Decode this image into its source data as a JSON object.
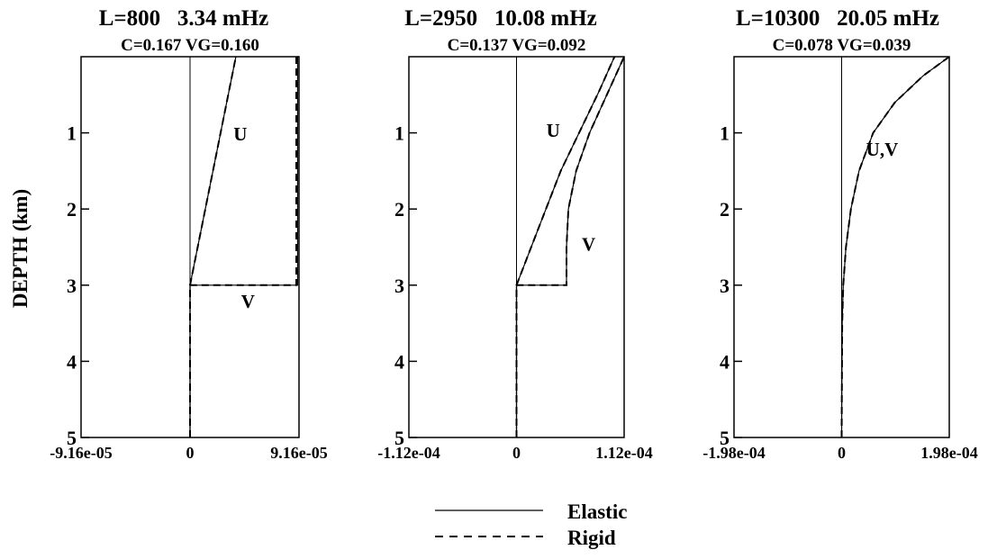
{
  "chart_data": [
    {
      "type": "line",
      "title": "L=800   3.34 mHz",
      "subtitle": "C=0.167 VG=0.160",
      "ylabel": "DEPTH (km)",
      "xlim": [
        -9.16e-05,
        9.16e-05
      ],
      "ylim": [
        0,
        5
      ],
      "y_inverted": true,
      "xticks": [
        "-9.16e-05",
        "0",
        "9.16e-05"
      ],
      "yticks": [
        "1",
        "2",
        "3",
        "4",
        "5"
      ],
      "zero_line": true,
      "series": [
        {
          "name": "U",
          "style": "Elastic",
          "x": [
            0,
            0,
            3.85e-05
          ],
          "y": [
            5,
            3,
            0
          ]
        },
        {
          "name": "U",
          "style": "Rigid",
          "x": [
            0,
            0,
            3.85e-05
          ],
          "y": [
            5,
            3,
            0
          ]
        },
        {
          "name": "V",
          "style": "Elastic",
          "x": [
            0,
            0,
            9.05e-05,
            9.05e-05,
            9.15e-05
          ],
          "y": [
            5,
            3,
            3,
            0,
            0
          ]
        },
        {
          "name": "V",
          "style": "Rigid",
          "x": [
            0,
            0,
            8.4e-05,
            8.93e-05,
            8.93e-05,
            9.15e-05
          ],
          "y": [
            5,
            3,
            3,
            3,
            0,
            0
          ]
        }
      ],
      "annotations": [
        {
          "text": "U",
          "x": 3.65e-05,
          "y": 1.1
        },
        {
          "text": "V",
          "x": 4.3e-05,
          "y": 3.3
        }
      ]
    },
    {
      "type": "line",
      "title": "L=2950   10.08 mHz",
      "subtitle": "C=0.137 VG=0.092",
      "xlim": [
        -0.000112,
        0.000112
      ],
      "ylim": [
        0,
        5
      ],
      "y_inverted": true,
      "xticks": [
        "-1.12e-04",
        "0",
        "1.12e-04"
      ],
      "yticks": [
        "1",
        "2",
        "3",
        "4",
        "5"
      ],
      "zero_line": true,
      "series": [
        {
          "name": "U",
          "style": "Elastic",
          "x": [
            0,
            0,
            2.3e-05,
            4.6e-05,
            6.7e-05,
            8.6e-05,
            0.000102
          ],
          "y": [
            5,
            3,
            2.25,
            1.5,
            0.95,
            0.45,
            0
          ]
        },
        {
          "name": "U",
          "style": "Rigid",
          "x": [
            0,
            0,
            2.3e-05,
            4.6e-05,
            6.7e-05,
            8.6e-05,
            0.000102
          ],
          "y": [
            5,
            3,
            2.25,
            1.5,
            0.95,
            0.45,
            0
          ]
        },
        {
          "name": "V",
          "style": "Elastic",
          "x": [
            0,
            0,
            5.2e-05,
            5.2e-05,
            5.4e-05,
            6.2e-05,
            7.6e-05,
            9.4e-05,
            0.000112
          ],
          "y": [
            5,
            3,
            3,
            2.5,
            2.0,
            1.5,
            1.0,
            0.5,
            0
          ]
        },
        {
          "name": "V",
          "style": "Rigid",
          "x": [
            0,
            0,
            5.2e-05,
            5.2e-05,
            5.4e-05,
            6.2e-05,
            7.6e-05,
            9.4e-05,
            0.000112
          ],
          "y": [
            5,
            3,
            3,
            2.5,
            2.0,
            1.5,
            1.0,
            0.5,
            0
          ]
        }
      ],
      "annotations": [
        {
          "text": "U",
          "x": 3.1e-05,
          "y": 1.05
        },
        {
          "text": "V",
          "x": 6.8e-05,
          "y": 2.55
        }
      ]
    },
    {
      "type": "line",
      "title": "L=10300   20.05 mHz",
      "subtitle": "C=0.078 VG=0.039",
      "xlim": [
        -0.000198,
        0.000198
      ],
      "ylim": [
        0,
        5
      ],
      "y_inverted": true,
      "xticks": [
        "-1.98e-04",
        "0",
        "1.98e-04"
      ],
      "yticks": [
        "1",
        "2",
        "3",
        "4",
        "5"
      ],
      "zero_line": true,
      "series": [
        {
          "name": "U,V",
          "style": "Elastic",
          "x": [
            0,
            1e-06,
            3e-06,
            8e-06,
            1.7e-05,
            3.2e-05,
            5.8e-05,
            9.8e-05,
            0.00015,
            0.000198
          ],
          "y": [
            5,
            3.5,
            3,
            2.5,
            2,
            1.5,
            1,
            0.6,
            0.25,
            0
          ]
        },
        {
          "name": "U,V",
          "style": "Rigid",
          "x": [
            0,
            1e-06,
            3e-06,
            8e-06,
            1.7e-05,
            3.2e-05,
            5.8e-05,
            9.8e-05,
            0.00015,
            0.000198
          ],
          "y": [
            5,
            3.5,
            3,
            2.5,
            2,
            1.5,
            1,
            0.6,
            0.25,
            0
          ]
        }
      ],
      "annotations": [
        {
          "text": "U,V",
          "x": 4.5e-05,
          "y": 1.3
        }
      ]
    }
  ],
  "legend": {
    "placement": "bottom-center",
    "entries": [
      {
        "label": "Elastic",
        "style": "solid"
      },
      {
        "label": "Rigid",
        "style": "dashed"
      }
    ]
  },
  "colors": {
    "line": "#000000",
    "background": "#ffffff"
  }
}
